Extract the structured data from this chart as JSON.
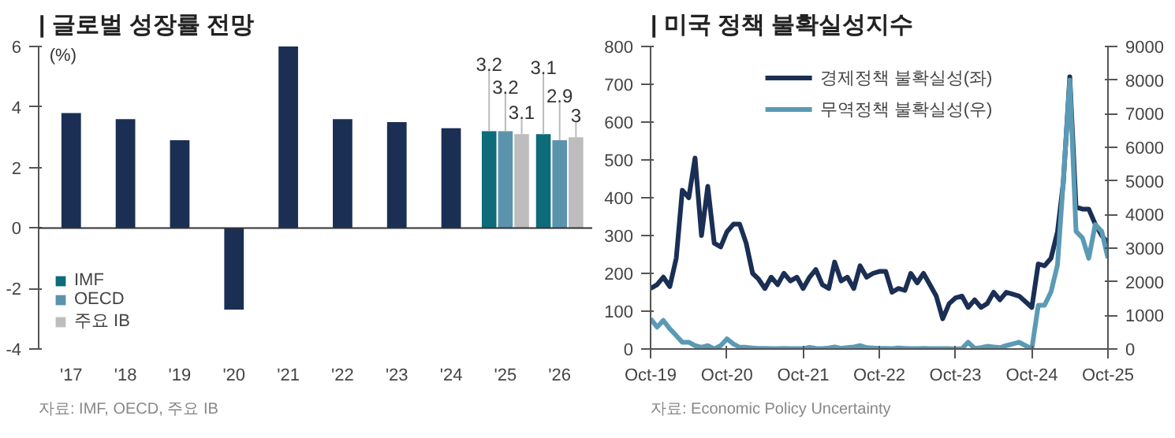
{
  "chart_data": [
    {
      "type": "bar",
      "title": "| 글로벌 성장률 전망",
      "ylabel": "(%)",
      "categories": [
        "'17",
        "'18",
        "'19",
        "'20",
        "'21",
        "'22",
        "'23",
        "'24",
        "'25",
        "'26"
      ],
      "series": [
        {
          "color": "#1b2f55",
          "values": [
            3.8,
            3.6,
            2.9,
            -2.7,
            6.0,
            3.6,
            3.5,
            3.3,
            null,
            null
          ]
        },
        {
          "name": "IMF",
          "color": "#0e6b7a",
          "values": [
            null,
            null,
            null,
            null,
            null,
            null,
            null,
            null,
            3.2,
            3.1
          ],
          "value_labels": [
            null,
            null,
            null,
            null,
            null,
            null,
            null,
            null,
            "3.2",
            "3.1"
          ]
        },
        {
          "name": "OECD",
          "color": "#5b93ad",
          "values": [
            null,
            null,
            null,
            null,
            null,
            null,
            null,
            null,
            3.2,
            2.9
          ],
          "value_labels": [
            null,
            null,
            null,
            null,
            null,
            null,
            null,
            null,
            "3.2",
            "2.9"
          ]
        },
        {
          "name": "주요 IB",
          "color": "#bdbdbd",
          "values": [
            null,
            null,
            null,
            null,
            null,
            null,
            null,
            null,
            3.1,
            3.0
          ],
          "value_labels": [
            null,
            null,
            null,
            null,
            null,
            null,
            null,
            null,
            "3.1",
            "3"
          ]
        }
      ],
      "ylim": [
        -4,
        6
      ],
      "yticks": [
        -4,
        -2,
        0,
        2,
        4,
        6
      ],
      "legend": "bottom left",
      "annotations": [
        "자료: IMF, OECD, 주요 IB"
      ]
    },
    {
      "type": "line",
      "title": "| 미국 정책 불확실성지수",
      "x": [
        "2019-10",
        "2019-11",
        "2019-12",
        "2020-01",
        "2020-02",
        "2020-03",
        "2020-04",
        "2020-05",
        "2020-06",
        "2020-07",
        "2020-08",
        "2020-09",
        "2020-10",
        "2020-11",
        "2020-12",
        "2021-01",
        "2021-02",
        "2021-03",
        "2021-04",
        "2021-05",
        "2021-06",
        "2021-07",
        "2021-08",
        "2021-09",
        "2021-10",
        "2021-11",
        "2021-12",
        "2022-01",
        "2022-02",
        "2022-03",
        "2022-04",
        "2022-05",
        "2022-06",
        "2022-07",
        "2022-08",
        "2022-09",
        "2022-10",
        "2022-11",
        "2022-12",
        "2023-01",
        "2023-02",
        "2023-03",
        "2023-04",
        "2023-05",
        "2023-06",
        "2023-07",
        "2023-08",
        "2023-09",
        "2023-10",
        "2023-11",
        "2023-12",
        "2024-01",
        "2024-02",
        "2024-03",
        "2024-04",
        "2024-05",
        "2024-06",
        "2024-07",
        "2024-08",
        "2024-09",
        "2024-10",
        "2024-11",
        "2024-12",
        "2025-01",
        "2025-02",
        "2025-03",
        "2025-04",
        "2025-05",
        "2025-06",
        "2025-07",
        "2025-08",
        "2025-09",
        "2025-10"
      ],
      "series": [
        {
          "name": "경제정책 불확실성(좌)",
          "color": "#1b2f55",
          "values": [
            160,
            170,
            190,
            165,
            240,
            420,
            400,
            505,
            300,
            430,
            280,
            270,
            310,
            330,
            330,
            280,
            200,
            185,
            160,
            190,
            170,
            200,
            180,
            190,
            160,
            190,
            210,
            170,
            160,
            230,
            180,
            190,
            160,
            220,
            190,
            200,
            205,
            205,
            150,
            160,
            155,
            200,
            175,
            200,
            170,
            140,
            80,
            120,
            135,
            140,
            110,
            130,
            110,
            120,
            150,
            130,
            150,
            145,
            140,
            125,
            110,
            225,
            220,
            240,
            310,
            440,
            720,
            375,
            370,
            370,
            330,
            300,
            280
          ]
        },
        {
          "name": "무역정책 불확실성(우)",
          "color": "#5b9ab5",
          "axis": "y2",
          "values": [
            900,
            650,
            850,
            600,
            400,
            200,
            200,
            100,
            50,
            100,
            0,
            100,
            300,
            150,
            50,
            50,
            30,
            20,
            20,
            10,
            10,
            20,
            10,
            10,
            10,
            50,
            20,
            10,
            30,
            60,
            20,
            40,
            60,
            100,
            40,
            30,
            20,
            20,
            10,
            30,
            20,
            10,
            10,
            20,
            10,
            10,
            10,
            10,
            0,
            10,
            200,
            20,
            40,
            80,
            60,
            40,
            100,
            150,
            200,
            100,
            0,
            1300,
            1300,
            1700,
            2500,
            5000,
            8000,
            3500,
            3300,
            2700,
            3700,
            3500,
            2700
          ]
        }
      ],
      "xlim": [
        "2019-10",
        "2025-10"
      ],
      "xticks": [
        {
          "value": "2019-10",
          "label": "Oct-19"
        },
        {
          "value": "2020-10",
          "label": "Oct-20"
        },
        {
          "value": "2021-10",
          "label": "Oct-21"
        },
        {
          "value": "2022-10",
          "label": "Oct-22"
        },
        {
          "value": "2023-10",
          "label": "Oct-23"
        },
        {
          "value": "2024-10",
          "label": "Oct-24"
        },
        {
          "value": "2025-10",
          "label": "Oct-25"
        }
      ],
      "ylim": [
        0,
        800
      ],
      "yticks": [
        0,
        100,
        200,
        300,
        400,
        500,
        600,
        700,
        800
      ],
      "y2lim": [
        0,
        9000
      ],
      "y2ticks": [
        0,
        1000,
        2000,
        3000,
        4000,
        5000,
        6000,
        7000,
        8000,
        9000
      ],
      "legend": "top",
      "line_style": "solid",
      "marker": "none",
      "annotations": [
        "자료: Economic Policy Uncertainty"
      ]
    }
  ]
}
